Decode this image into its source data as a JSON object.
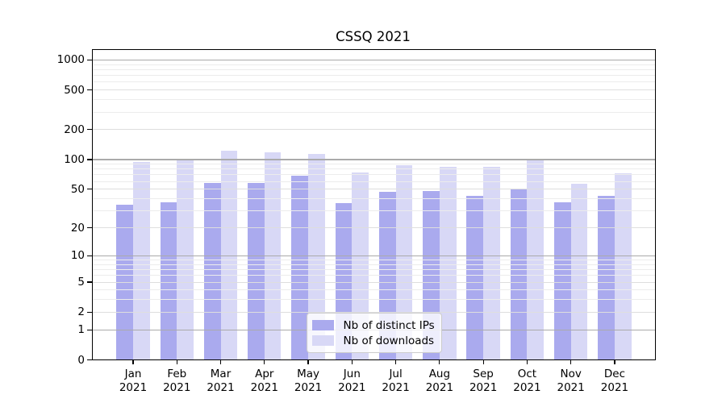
{
  "chart_data": {
    "type": "bar",
    "title": "CSSQ 2021",
    "categories": [
      "Jan 2021",
      "Feb 2021",
      "Mar 2021",
      "Apr 2021",
      "May 2021",
      "Jun 2021",
      "Jul 2021",
      "Aug 2021",
      "Sep 2021",
      "Oct 2021",
      "Nov 2021",
      "Dec 2021"
    ],
    "series": [
      {
        "name": "Nb of distinct IPs",
        "color": "#aaaaee",
        "values": [
          35,
          37,
          58,
          58,
          68,
          36,
          47,
          48,
          43,
          51,
          37,
          43
        ]
      },
      {
        "name": "Nb of downloads",
        "color": "#d8d8f6",
        "values": [
          94,
          98,
          122,
          118,
          115,
          74,
          87,
          84,
          85,
          101,
          57,
          73
        ]
      }
    ],
    "yscale": "log1p",
    "ylim": [
      0,
      1270
    ],
    "yticks": [
      1000,
      500,
      200,
      100,
      50,
      20,
      10,
      5,
      2,
      1,
      0
    ],
    "grid": "on",
    "legend_position": "lower center",
    "colors": {
      "grid_decade": "#aaaaaa",
      "grid_major": "#dedede",
      "grid_minor": "#ececec",
      "axis": "#000000"
    }
  }
}
